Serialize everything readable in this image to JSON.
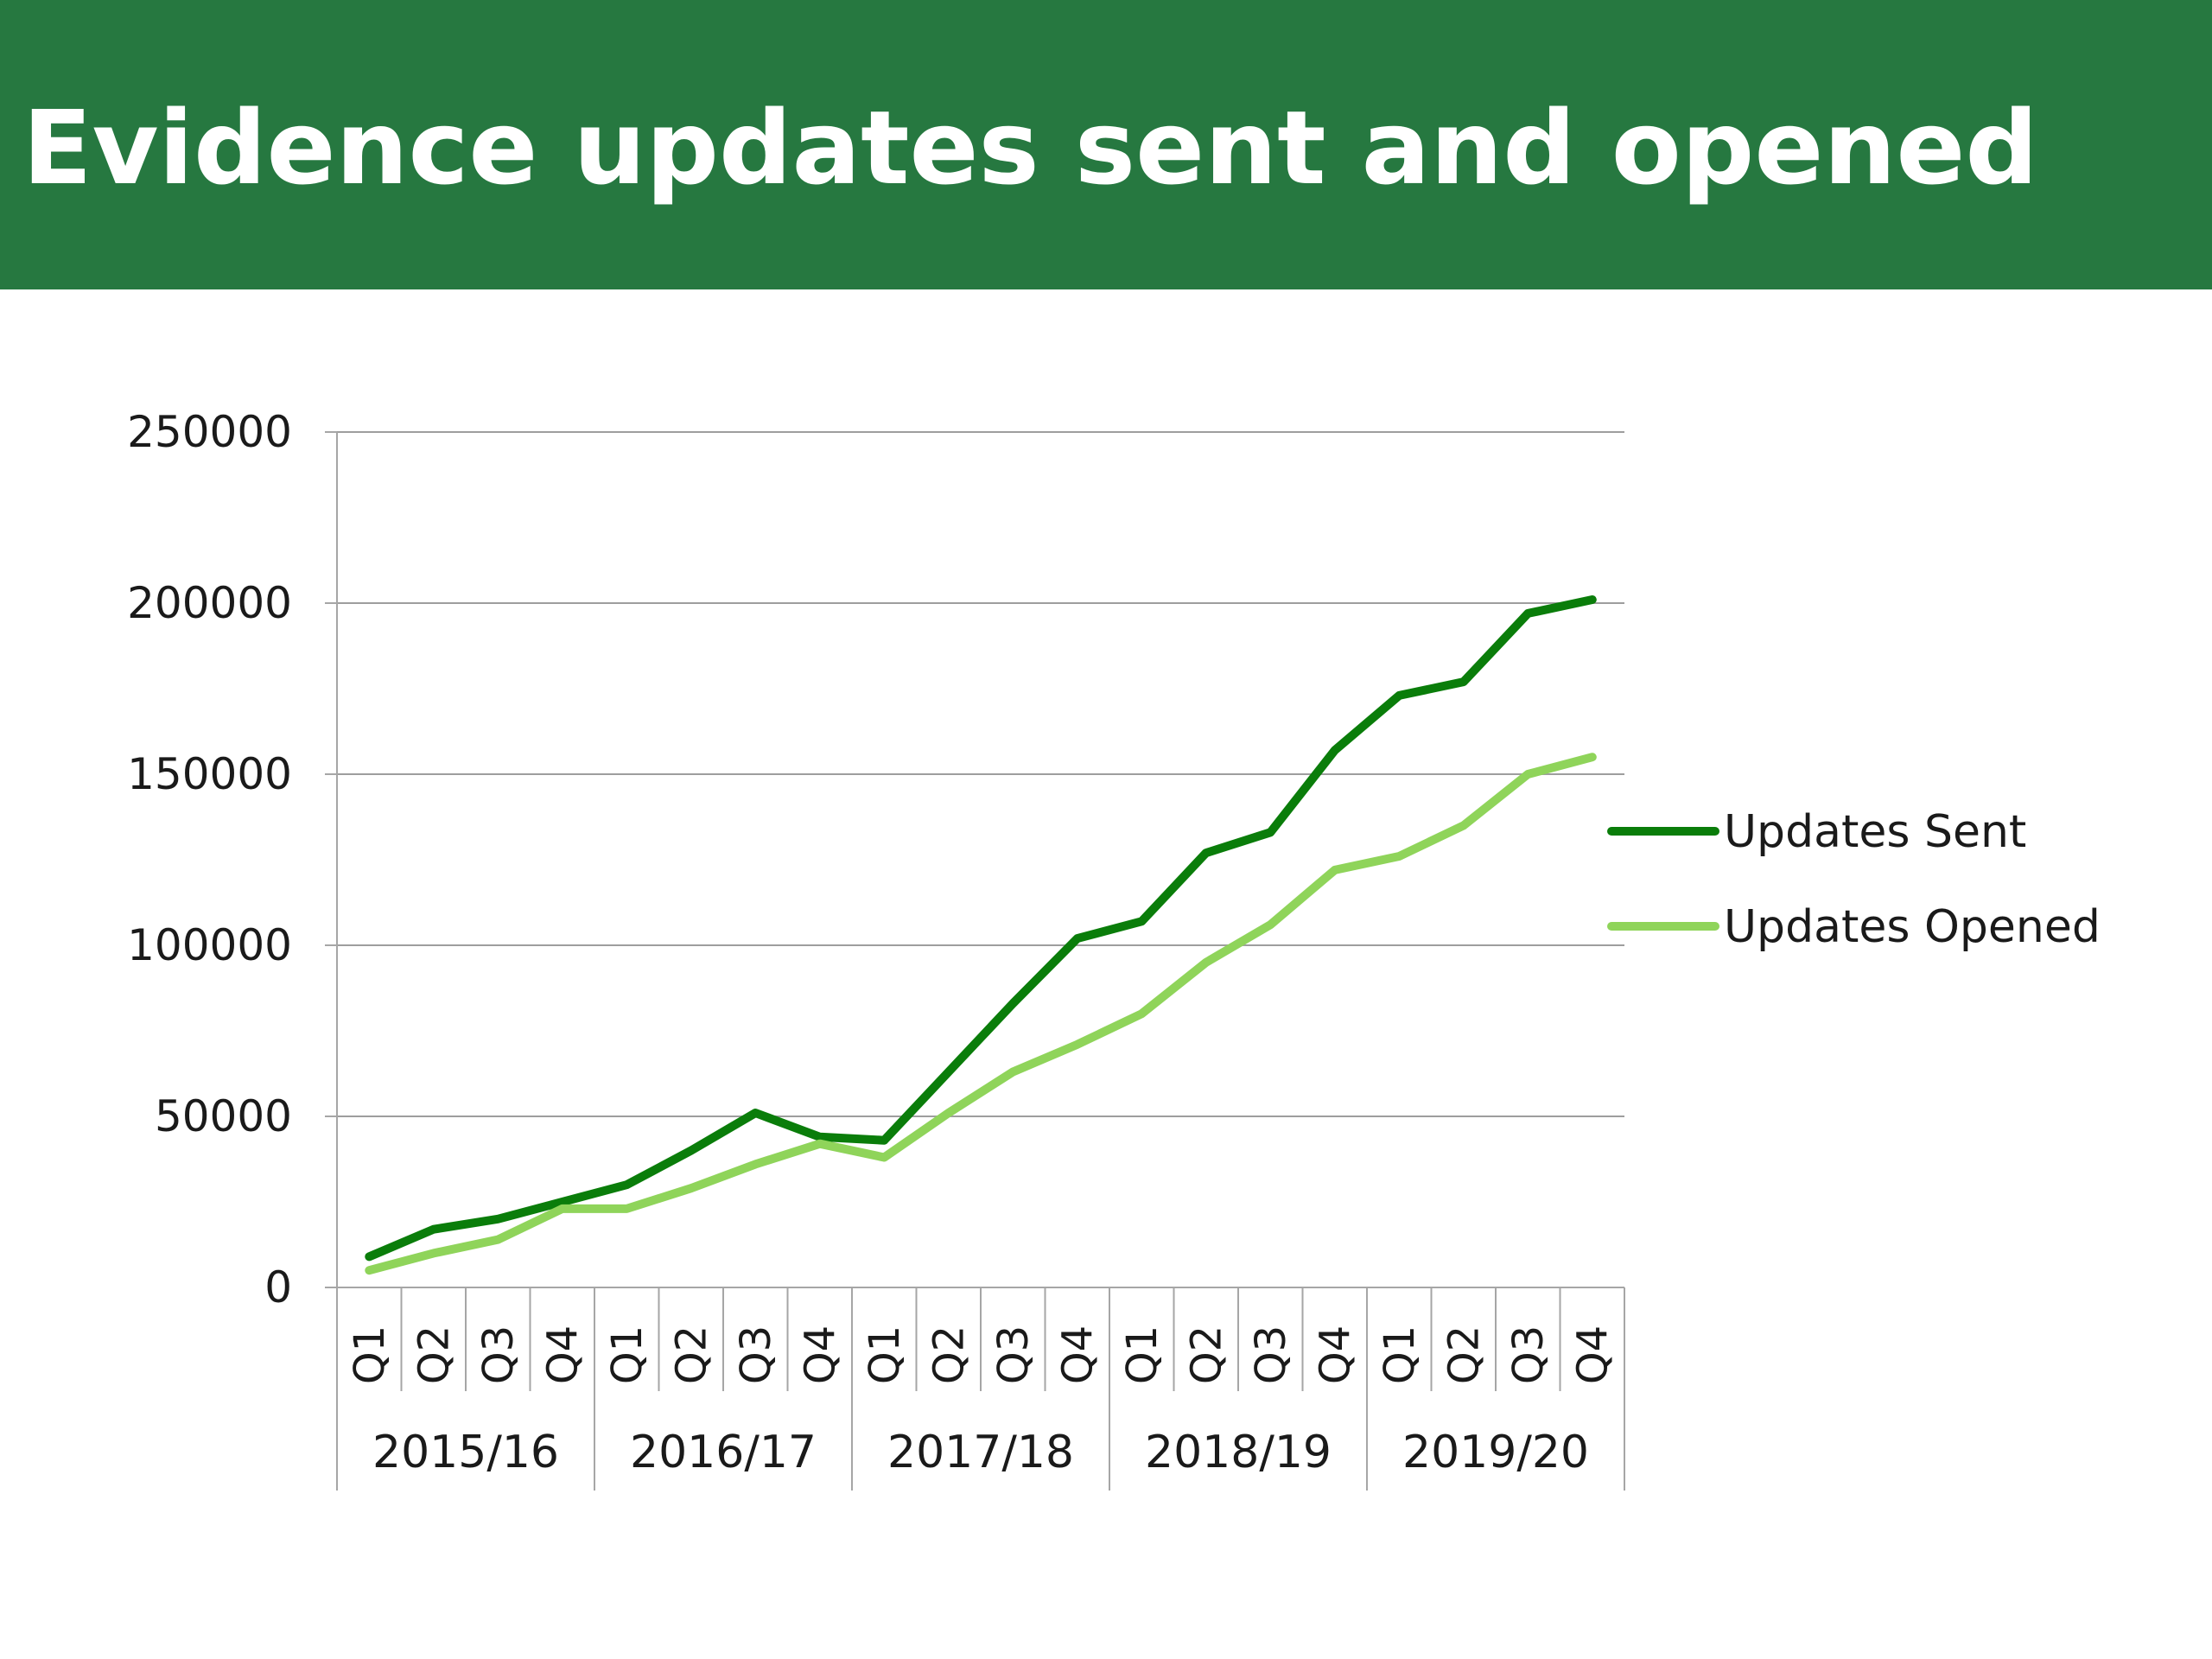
{
  "header": {
    "title": "Evidence updates sent and opened"
  },
  "colors": {
    "header_bg": "#267840",
    "series_sent": "#0a7d0a",
    "series_opened": "#8fd45a",
    "gridline": "#9e9e9e",
    "axis": "#a6a6a6",
    "text": "#1a1a1a"
  },
  "chart_data": {
    "type": "line",
    "title": "",
    "xlabel": "",
    "ylabel": "",
    "ylim": [
      0,
      250000
    ],
    "yticks": [
      0,
      50000,
      100000,
      150000,
      200000,
      250000
    ],
    "ytick_labels": [
      "0",
      "50000",
      "100000",
      "150000",
      "200000",
      "250000"
    ],
    "grid": true,
    "legend_position": "right",
    "groups": [
      {
        "label": "2015/16",
        "quarters": [
          "Q1",
          "Q2",
          "Q3",
          "Q4"
        ]
      },
      {
        "label": "2016/17",
        "quarters": [
          "Q1",
          "Q2",
          "Q3",
          "Q4"
        ]
      },
      {
        "label": "2017/18",
        "quarters": [
          "Q1",
          "Q2",
          "Q3",
          "Q4"
        ]
      },
      {
        "label": "2018/19",
        "quarters": [
          "Q1",
          "Q2",
          "Q3",
          "Q4"
        ]
      },
      {
        "label": "2019/20",
        "quarters": [
          "Q1",
          "Q2",
          "Q3",
          "Q4"
        ]
      }
    ],
    "series": [
      {
        "name": "Updates Sent",
        "color": "#0a7d0a",
        "values": [
          9000,
          17000,
          20000,
          25000,
          30000,
          40000,
          51000,
          44000,
          43000,
          63000,
          83000,
          102000,
          107000,
          127000,
          133000,
          157000,
          173000,
          177000,
          197000,
          201000
        ]
      },
      {
        "name": "Updates Opened",
        "color": "#8fd45a",
        "values": [
          5000,
          10000,
          14000,
          23000,
          23000,
          29000,
          36000,
          42000,
          38000,
          51000,
          63000,
          71000,
          80000,
          95000,
          106000,
          122000,
          126000,
          135000,
          150000,
          155000
        ]
      }
    ]
  }
}
